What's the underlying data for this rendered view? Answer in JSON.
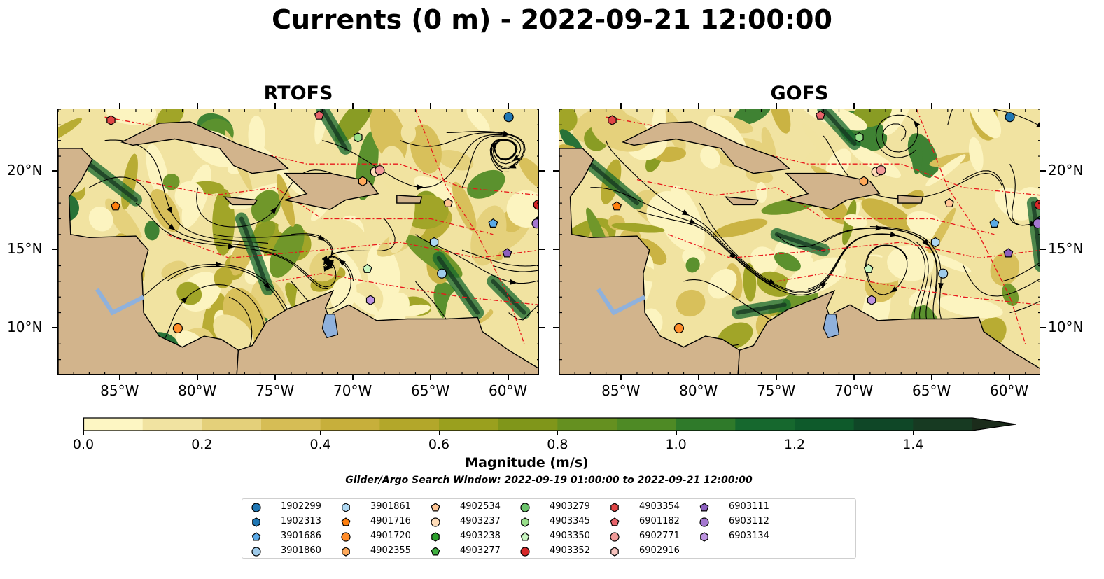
{
  "title": "Currents (0 m) - 2022-09-21 12:00:00",
  "panels": [
    {
      "title": "RTOFS",
      "variant": 0
    },
    {
      "title": "GOFS",
      "variant": 1
    }
  ],
  "axes": {
    "lon_labels": [
      "85°W",
      "80°W",
      "75°W",
      "70°W",
      "65°W",
      "60°W"
    ],
    "lat_labels": [
      "20°N",
      "15°N",
      "10°N"
    ]
  },
  "colorbar": {
    "ticks": [
      "0.0",
      "0.2",
      "0.4",
      "0.6",
      "0.8",
      "1.0",
      "1.2",
      "1.4"
    ],
    "label": "Magnitude (m/s)",
    "levels": [
      0,
      0.1,
      0.2,
      0.3,
      0.4,
      0.5,
      0.6,
      0.7,
      0.8,
      0.9,
      1.0,
      1.1,
      1.2,
      1.3,
      1.4,
      1.5
    ],
    "colors": [
      "#fdf6c3",
      "#f1e3a1",
      "#e4d07a",
      "#d6bd55",
      "#c7af3b",
      "#b3a72a",
      "#9aa01e",
      "#80961a",
      "#659020",
      "#4e8a25",
      "#2f7a2a",
      "#16682e",
      "#0e5a2b",
      "#0f4727",
      "#173a22",
      "#1b2c1b"
    ]
  },
  "search_window": "Glider/Argo Search Window: 2022-09-19 01:00:00 to 2022-09-21 12:00:00",
  "legend": [
    {
      "label": "1902299",
      "color": "#1f77b4",
      "marker": "circle"
    },
    {
      "label": "1902313",
      "color": "#1f77b4",
      "marker": "hexagon"
    },
    {
      "label": "3901686",
      "color": "#5aa9e6",
      "marker": "pentagon"
    },
    {
      "label": "3901860",
      "color": "#9ecae9",
      "marker": "circle"
    },
    {
      "label": "3901861",
      "color": "#aed8f3",
      "marker": "hexagon"
    },
    {
      "label": "4901716",
      "color": "#ff7f0e",
      "marker": "pentagon"
    },
    {
      "label": "4901720",
      "color": "#ff8c2a",
      "marker": "circle"
    },
    {
      "label": "4902355",
      "color": "#ffa95a",
      "marker": "hexagon"
    },
    {
      "label": "4902534",
      "color": "#ffc594",
      "marker": "pentagon"
    },
    {
      "label": "4903237",
      "color": "#ffdcb8",
      "marker": "circle"
    },
    {
      "label": "4903238",
      "color": "#2ca02c",
      "marker": "hexagon"
    },
    {
      "label": "4903277",
      "color": "#40b040",
      "marker": "pentagon"
    },
    {
      "label": "4903279",
      "color": "#6cc46c",
      "marker": "circle"
    },
    {
      "label": "4903345",
      "color": "#98df8a",
      "marker": "hexagon"
    },
    {
      "label": "4903350",
      "color": "#c8f5c0",
      "marker": "pentagon"
    },
    {
      "label": "4903352",
      "color": "#d62728",
      "marker": "circle"
    },
    {
      "label": "4903354",
      "color": "#e04545",
      "marker": "hexagon"
    },
    {
      "label": "6901182",
      "color": "#e8636a",
      "marker": "pentagon"
    },
    {
      "label": "6902771",
      "color": "#f09a98",
      "marker": "circle"
    },
    {
      "label": "6902916",
      "color": "#f7c3be",
      "marker": "hexagon"
    },
    {
      "label": "6903111",
      "color": "#8c5fbf",
      "marker": "pentagon"
    },
    {
      "label": "6903112",
      "color": "#a477d0",
      "marker": "circle"
    },
    {
      "label": "6903134",
      "color": "#bc92e0",
      "marker": "hexagon"
    }
  ],
  "floats": [
    {
      "id": "1902299",
      "lon": -60.0,
      "lat": 23.5
    },
    {
      "id": "1902313",
      "lon": -58.0,
      "lat": 16.9
    },
    {
      "id": "3901686",
      "lon": -61.0,
      "lat": 16.7
    },
    {
      "id": "3901860",
      "lon": -64.3,
      "lat": 13.5
    },
    {
      "id": "3901861",
      "lon": -64.8,
      "lat": 15.5
    },
    {
      "id": "4901716",
      "lon": -85.3,
      "lat": 17.8
    },
    {
      "id": "4901720",
      "lon": -81.3,
      "lat": 10.0
    },
    {
      "id": "4902355",
      "lon": -69.4,
      "lat": 19.4
    },
    {
      "id": "4902534",
      "lon": -63.9,
      "lat": 18.0
    },
    {
      "id": "4903237",
      "lon": -68.6,
      "lat": 20.0
    },
    {
      "id": "4903345",
      "lon": -69.7,
      "lat": 22.2
    },
    {
      "id": "4903350",
      "lon": -69.1,
      "lat": 13.8
    },
    {
      "id": "4903354",
      "lon": -85.6,
      "lat": 23.3
    },
    {
      "id": "6901182",
      "lon": -72.2,
      "lat": 23.6
    },
    {
      "id": "6902771",
      "lon": -68.3,
      "lat": 20.1
    },
    {
      "id": "6903111",
      "lon": -60.1,
      "lat": 14.8
    },
    {
      "id": "6903112",
      "lon": -58.2,
      "lat": 16.7
    },
    {
      "id": "6903134",
      "lon": -68.9,
      "lat": 11.8
    },
    {
      "id": "4903352",
      "lon": -58.1,
      "lat": 17.9
    }
  ]
}
